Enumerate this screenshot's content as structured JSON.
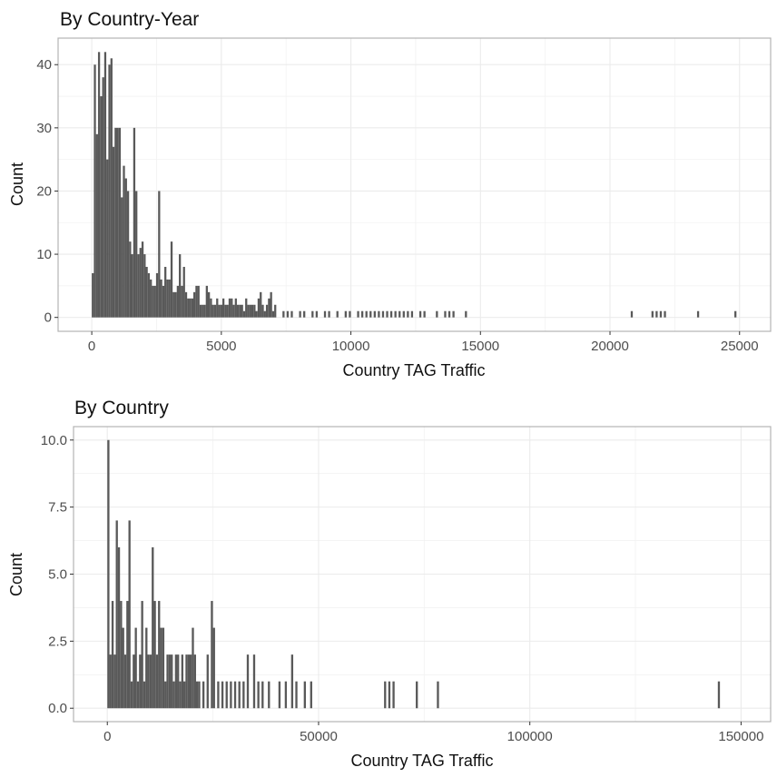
{
  "chart_data": [
    {
      "type": "bar",
      "title": "By Country-Year",
      "xlabel": "Country TAG Traffic",
      "ylabel": "Count",
      "xlim": [
        -1300,
        26200
      ],
      "ylim": [
        -2.2,
        44.2
      ],
      "xticks": [
        0,
        5000,
        10000,
        15000,
        20000,
        25000
      ],
      "yticks": [
        0,
        10,
        20,
        30,
        40
      ],
      "xtick_labels": [
        "0",
        "5000",
        "10000",
        "15000",
        "20000",
        "25000"
      ],
      "ytick_labels": [
        "0",
        "10",
        "20",
        "30",
        "40"
      ],
      "grid": true,
      "bar_color": "#595959",
      "binwidth": 80,
      "x": [
        40,
        120,
        200,
        280,
        360,
        440,
        520,
        600,
        680,
        760,
        840,
        920,
        1000,
        1080,
        1160,
        1240,
        1320,
        1400,
        1480,
        1560,
        1640,
        1720,
        1800,
        1880,
        1960,
        2040,
        2120,
        2200,
        2280,
        2360,
        2440,
        2520,
        2600,
        2680,
        2760,
        2840,
        2920,
        3000,
        3080,
        3160,
        3240,
        3320,
        3400,
        3480,
        3560,
        3640,
        3720,
        3800,
        3880,
        3960,
        4040,
        4120,
        4200,
        4280,
        4360,
        4440,
        4520,
        4600,
        4680,
        4760,
        4840,
        4920,
        5000,
        5080,
        5160,
        5240,
        5320,
        5400,
        5480,
        5560,
        5640,
        5720,
        5800,
        5880,
        5960,
        6040,
        6120,
        6200,
        6280,
        6360,
        6440,
        6520,
        6600,
        6680,
        6760,
        6840,
        6920,
        7000,
        7080,
        7400,
        7560,
        7720,
        8040,
        8200,
        8520,
        8680,
        9000,
        9160,
        9480,
        9800,
        9960,
        10280,
        10440,
        10600,
        10760,
        10920,
        11080,
        11240,
        11400,
        11560,
        11720,
        11880,
        12040,
        12200,
        12360,
        12680,
        12840,
        13320,
        13640,
        13800,
        13960,
        14440,
        20840,
        21640,
        21800,
        21960,
        22120,
        23400,
        24840
      ],
      "y": [
        7,
        40,
        29,
        42,
        35,
        38,
        42,
        25,
        40,
        41,
        27,
        30,
        30,
        30,
        19,
        24,
        22,
        20,
        12,
        10,
        30,
        20,
        10,
        11,
        12,
        10,
        8,
        7,
        6,
        5,
        5,
        7,
        20,
        6,
        5,
        8,
        6,
        6,
        12,
        4,
        4,
        5,
        10,
        5,
        8,
        4,
        3,
        3,
        3,
        4,
        5,
        5,
        2,
        2,
        2,
        5,
        4,
        3,
        2,
        2,
        3,
        2,
        2,
        3,
        2,
        2,
        3,
        3,
        2,
        3,
        2,
        2,
        2,
        1,
        3,
        2,
        2,
        2,
        2,
        1,
        3,
        4,
        2,
        1,
        2,
        3,
        4,
        1,
        2,
        1,
        1,
        1,
        1,
        1,
        1,
        1,
        1,
        1,
        1,
        1,
        1,
        1,
        1,
        1,
        1,
        1,
        1,
        1,
        1,
        1,
        1,
        1,
        1,
        1,
        1,
        1,
        1,
        1,
        1,
        1,
        1,
        1,
        1,
        1,
        1,
        1,
        1,
        1,
        1
      ]
    },
    {
      "type": "bar",
      "title": "By Country",
      "xlabel": "Country TAG Traffic",
      "ylabel": "Count",
      "xlim": [
        -8000,
        157000
      ],
      "ylim": [
        -0.5,
        10.5
      ],
      "xticks": [
        0,
        50000,
        100000,
        150000
      ],
      "yticks": [
        0,
        2.5,
        5,
        7.5,
        10
      ],
      "xtick_labels": [
        "0",
        "50000",
        "100000",
        "150000"
      ],
      "ytick_labels": [
        "0.0",
        "2.5",
        "5.0",
        "7.5",
        "10.0"
      ],
      "grid": true,
      "bar_color": "#595959",
      "binwidth": 500,
      "x": [
        250,
        750,
        1250,
        1750,
        2250,
        2750,
        3250,
        3750,
        4250,
        4750,
        5250,
        5750,
        6250,
        6750,
        7250,
        7750,
        8250,
        8750,
        9250,
        9750,
        10250,
        10750,
        11250,
        11750,
        12250,
        12750,
        13250,
        13750,
        14250,
        14750,
        15250,
        15750,
        16250,
        16750,
        17250,
        17750,
        18250,
        18750,
        19250,
        19750,
        20250,
        20750,
        21250,
        21750,
        22750,
        23750,
        24750,
        25250,
        26250,
        27250,
        28250,
        29250,
        30250,
        31250,
        32250,
        33250,
        34750,
        35750,
        36750,
        38250,
        40750,
        42250,
        43750,
        44750,
        46750,
        48250,
        65750,
        66750,
        67750,
        73250,
        78250,
        144750
      ],
      "y": [
        10,
        2,
        4,
        2,
        7,
        6,
        4,
        3,
        2,
        4,
        7,
        1,
        2,
        3,
        1,
        2,
        4,
        1,
        3,
        2,
        2,
        6,
        4,
        2,
        4,
        3,
        3,
        1,
        2,
        2,
        2,
        1,
        2,
        2,
        1,
        2,
        1,
        2,
        2,
        2,
        3,
        2,
        1,
        1,
        1,
        2,
        4,
        3,
        1,
        1,
        1,
        1,
        1,
        1,
        1,
        2,
        2,
        1,
        1,
        1,
        1,
        1,
        2,
        1,
        1,
        1,
        1,
        1,
        1,
        1,
        1,
        1
      ]
    }
  ]
}
